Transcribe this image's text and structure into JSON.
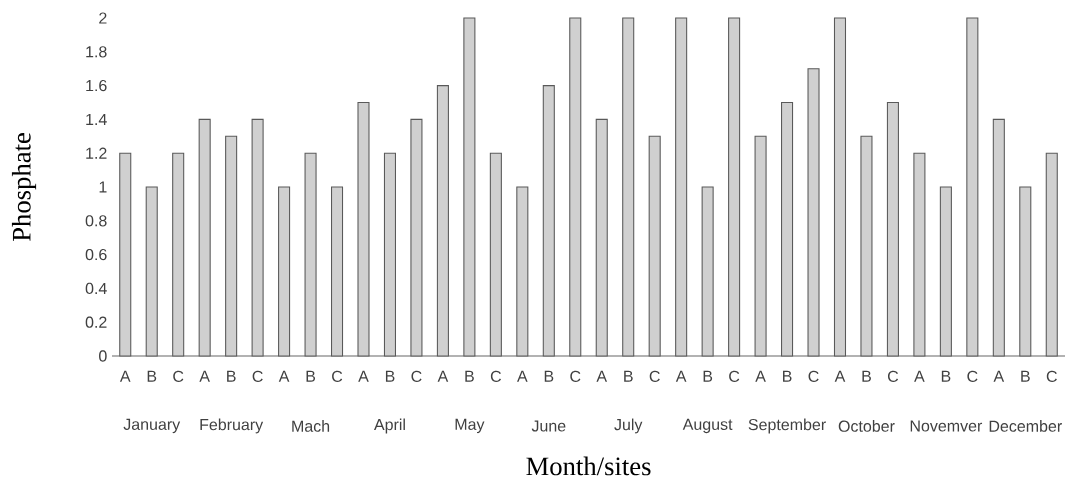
{
  "chart_data": {
    "type": "bar",
    "xlabel": "Month/sites",
    "ylabel": "Phosphate",
    "categories": [
      "A",
      "B",
      "C",
      "A",
      "B",
      "C",
      "A",
      "B",
      "C",
      "A",
      "B",
      "C",
      "A",
      "B",
      "C",
      "A",
      "B",
      "C",
      "A",
      "B",
      "C",
      "A",
      "B",
      "C",
      "A",
      "B",
      "C",
      "A",
      "B",
      "C",
      "A",
      "B",
      "C",
      "A",
      "B",
      "C"
    ],
    "values": [
      1.2,
      1.0,
      1.2,
      1.4,
      1.3,
      1.4,
      1.0,
      1.2,
      1.0,
      1.5,
      1.2,
      1.4,
      1.6,
      2.0,
      1.2,
      1.0,
      1.6,
      2.0,
      1.4,
      2.0,
      1.3,
      2.0,
      1.0,
      2.0,
      1.3,
      1.5,
      1.7,
      2.0,
      1.3,
      1.5,
      1.2,
      1.0,
      2.0,
      1.4,
      1.0,
      1.2
    ],
    "color": "#d0d0d0",
    "ylim": [
      0,
      2
    ],
    "yticks": [
      0,
      0.2,
      0.4,
      0.6,
      0.8,
      1,
      1.2,
      1.4,
      1.6,
      1.8,
      2
    ],
    "annotations": [
      "January",
      "February",
      "Mach",
      "April",
      "May",
      "June",
      "July",
      "August",
      "September",
      "October",
      "Novemver",
      "December"
    ]
  }
}
